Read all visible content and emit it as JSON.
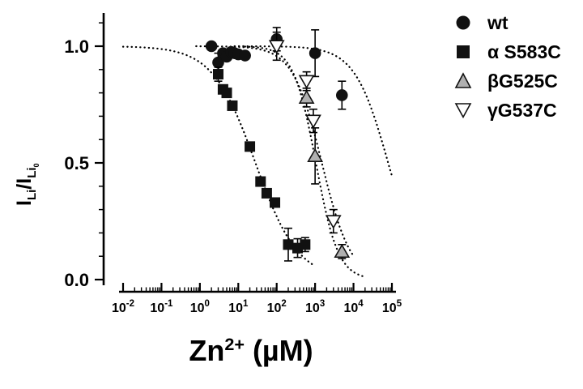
{
  "figure": {
    "background": "#ffffff"
  },
  "labels": {
    "x": {
      "base": "Zn",
      "sup": "2+",
      "unit": " (µM)"
    },
    "y": {
      "i1": "I",
      "li1": "Li",
      "slash": "/",
      "i2": "I",
      "li2": "Li",
      "zero": "0"
    }
  },
  "chart_data": {
    "type": "scatter",
    "x_scale": "log",
    "xlabel": "Zn2+ (µM)",
    "ylabel": "ILi/ILi0",
    "x_tick_exponents": [
      -2,
      -1,
      0,
      1,
      2,
      3,
      4,
      5
    ],
    "y_ticks": [
      0.0,
      0.5,
      1.0
    ],
    "ylim": [
      0,
      1.13
    ],
    "grid": false,
    "legend_position": "top-right-outside",
    "series": [
      {
        "name": "wt",
        "marker": "circle-filled",
        "color": "#111111",
        "points": [
          {
            "x": 2,
            "y": 1.0
          },
          {
            "x": 3,
            "y": 0.93,
            "err": 0.04
          },
          {
            "x": 4,
            "y": 0.97
          },
          {
            "x": 5,
            "y": 0.955
          },
          {
            "x": 6.5,
            "y": 0.975
          },
          {
            "x": 8,
            "y": 0.97
          },
          {
            "x": 10,
            "y": 0.965
          },
          {
            "x": 15,
            "y": 0.96
          },
          {
            "x": 100,
            "y": 1.03,
            "err": 0.05
          },
          {
            "x": 1000,
            "y": 0.97,
            "err": 0.1
          },
          {
            "x": 5000,
            "y": 0.79,
            "err": 0.06
          }
        ],
        "fit": {
          "type": "hill",
          "ic50": 80000,
          "hill": 1.0,
          "x_range": [
            8,
            100000
          ]
        }
      },
      {
        "name": "α S583C",
        "marker": "square-filled",
        "color": "#111111",
        "points": [
          {
            "x": 3,
            "y": 0.88,
            "err": 0.03
          },
          {
            "x": 4,
            "y": 0.815
          },
          {
            "x": 5,
            "y": 0.8
          },
          {
            "x": 7,
            "y": 0.745
          },
          {
            "x": 20,
            "y": 0.57
          },
          {
            "x": 38,
            "y": 0.42
          },
          {
            "x": 55,
            "y": 0.37
          },
          {
            "x": 90,
            "y": 0.33
          },
          {
            "x": 200,
            "y": 0.15,
            "err": 0.07
          },
          {
            "x": 350,
            "y": 0.135,
            "err": 0.04
          },
          {
            "x": 550,
            "y": 0.15,
            "err": 0.03
          }
        ],
        "fit": {
          "type": "hill",
          "ic50": 28,
          "hill": 0.78,
          "x_range": [
            0.01,
            900
          ]
        }
      },
      {
        "name": "βG525C",
        "marker": "triangle-up-gray",
        "color": "#b0b0b0",
        "points": [
          {
            "x": 600,
            "y": 0.78,
            "err": 0.04
          },
          {
            "x": 1000,
            "y": 0.53,
            "err": 0.12
          },
          {
            "x": 5000,
            "y": 0.12,
            "err": 0.03
          }
        ],
        "fit": {
          "type": "hill",
          "ic50": 1050,
          "hill": 1.5,
          "x_range": [
            15,
            20000
          ]
        }
      },
      {
        "name": "γG537C",
        "marker": "triangle-down-open",
        "color": "#ffffff",
        "points": [
          {
            "x": 100,
            "y": 1.0,
            "err": 0.06
          },
          {
            "x": 600,
            "y": 0.85,
            "err": 0.04
          },
          {
            "x": 900,
            "y": 0.68,
            "err": 0.05
          },
          {
            "x": 3000,
            "y": 0.25,
            "err": 0.05
          }
        ],
        "fit": {
          "type": "hill",
          "ic50": 1500,
          "hill": 1.15,
          "x_range": [
            0.8,
            10000
          ]
        }
      }
    ]
  }
}
